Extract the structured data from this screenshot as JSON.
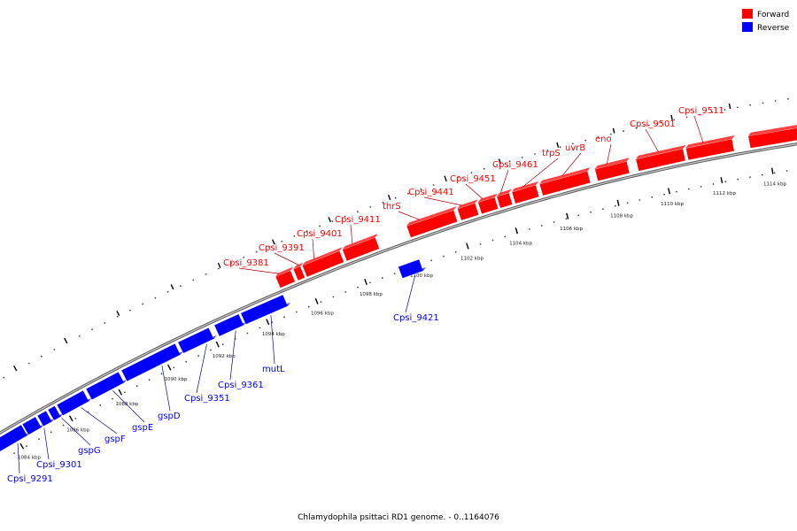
{
  "colors": {
    "forward": "#ff0000",
    "reverse": "#0000ff",
    "backbone": "#999999",
    "tick": "#000000"
  },
  "legend": {
    "forward": "Forward",
    "reverse": "Reverse"
  },
  "caption": "Chlamydophila psittaci RD1 genome. - 0..1164076",
  "scale_labels": [
    "1084 kbp",
    "1086 kbp",
    "1088 kbp",
    "1090 kbp",
    "1092 kbp",
    "1094 kbp",
    "1096 kbp",
    "1098 kbp",
    "1100 kbp",
    "1102 kbp",
    "1104 kbp",
    "1106 kbp",
    "1108 kbp",
    "1110 kbp",
    "1112 kbp",
    "1114 kbp"
  ],
  "forward_genes": [
    "Cpsi_9381",
    "Cpsi_9391",
    "Cpsi_9401",
    "Cpsi_9411",
    "thrS",
    "Cpsi_9441",
    "Cpsi_9451",
    "Cpsi_9461",
    "trpS",
    "uvrB",
    "eno",
    "Cpsi_9501",
    "Cpsi_9511"
  ],
  "reverse_genes": [
    "Cpsi_9291",
    "Cpsi_9301",
    "gspG",
    "gspF",
    "gspE",
    "gspD",
    "Cpsi_9351",
    "Cpsi_9361",
    "mutL",
    "Cpsi_9421"
  ]
}
